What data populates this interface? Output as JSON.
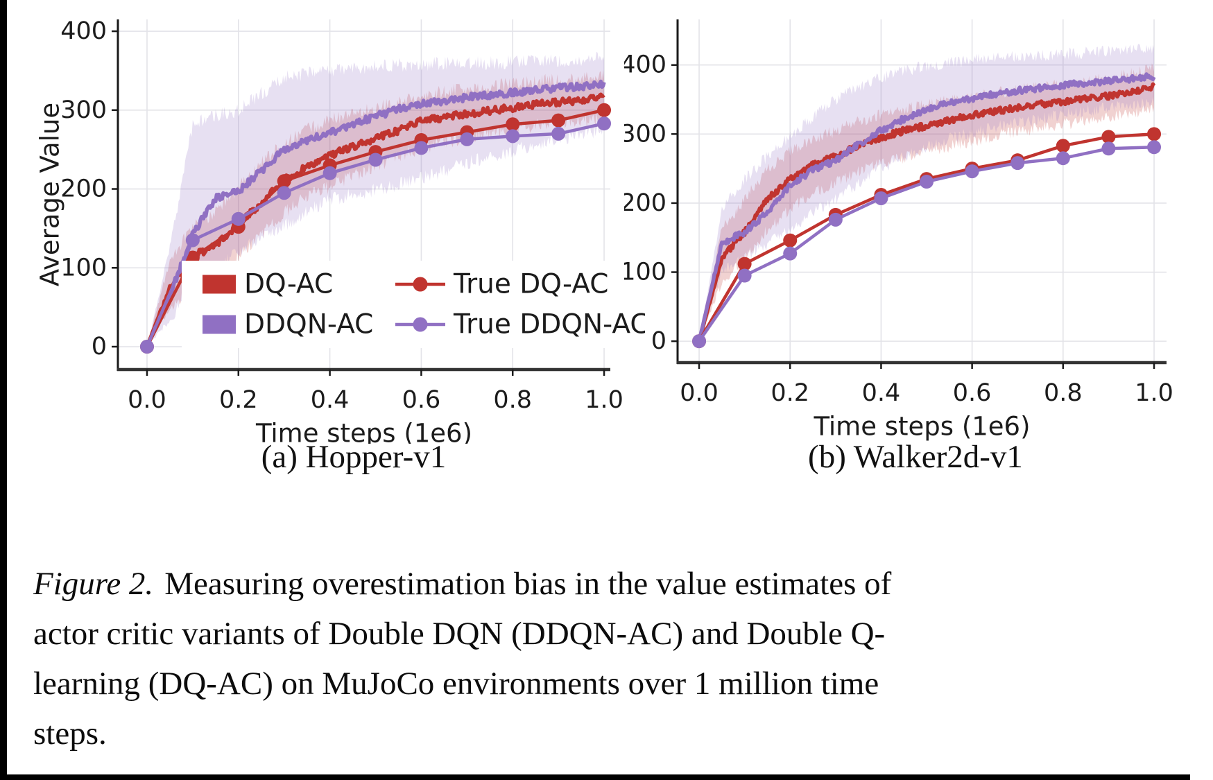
{
  "page": {
    "background": "#ffffff",
    "edge_bar_color": "#000000"
  },
  "colors": {
    "red": "#c0342f",
    "purple": "#9070c3",
    "grid": "#e3e3e8",
    "spine": "#222222",
    "text": "#1b1b1b",
    "legend_bg": "#ffffff"
  },
  "caption": {
    "label": "Figure 2.",
    "lines": [
      "Measuring overestimation bias in the value estimates of",
      "actor critic variants of Double DQN (DDQN-AC) and Double Q-",
      "learning (DQ-AC) on MuJoCo environments over 1 million time",
      "steps."
    ]
  },
  "chart_data": [
    {
      "id": "hopper",
      "type": "line",
      "title": "(a) Hopper-v1",
      "xlabel": "Time steps (1e6)",
      "ylabel": "Average Value",
      "xlim": [
        -0.0637,
        1.0136
      ],
      "ylim": [
        -29,
        415
      ],
      "xticks": [
        0,
        0.2,
        0.4,
        0.6,
        0.8,
        1.0
      ],
      "xtick_labels": [
        "0.0",
        "0.2",
        "0.4",
        "0.6",
        "0.8",
        "1.0"
      ],
      "yticks": [
        0,
        100,
        200,
        300,
        400
      ],
      "ytick_labels": [
        "0",
        "100",
        "200",
        "300",
        "400"
      ],
      "grid": true,
      "legend": true,
      "legend_position": "lower left inside",
      "series": [
        {
          "name": "DQ-AC",
          "color": "#c0342f",
          "style": "noisy_band",
          "x": [
            0,
            0.05,
            0.1,
            0.15,
            0.2,
            0.25,
            0.3,
            0.35,
            0.4,
            0.45,
            0.5,
            0.55,
            0.6,
            0.65,
            0.7,
            0.75,
            0.8,
            0.85,
            0.9,
            0.95,
            1.0
          ],
          "mean": [
            0,
            75,
            115,
            128,
            155,
            182,
            212,
            228,
            243,
            254,
            264,
            274,
            286,
            291,
            295,
            299,
            303,
            307,
            310,
            312,
            316
          ],
          "upper": [
            0,
            110,
            152,
            172,
            202,
            232,
            258,
            275,
            288,
            296,
            302,
            310,
            318,
            323,
            327,
            330,
            333,
            336,
            338,
            340,
            343
          ],
          "lower": [
            0,
            45,
            80,
            94,
            114,
            142,
            170,
            190,
            203,
            216,
            229,
            241,
            251,
            259,
            265,
            270,
            275,
            280,
            284,
            287,
            291
          ]
        },
        {
          "name": "DDQN-AC",
          "color": "#9070c3",
          "style": "noisy_band",
          "x": [
            0,
            0.05,
            0.1,
            0.15,
            0.2,
            0.25,
            0.3,
            0.35,
            0.4,
            0.45,
            0.5,
            0.55,
            0.6,
            0.65,
            0.7,
            0.75,
            0.8,
            0.85,
            0.9,
            0.95,
            1.0
          ],
          "mean": [
            0,
            65,
            143,
            188,
            197,
            223,
            250,
            262,
            271,
            282,
            292,
            301,
            308,
            312,
            316,
            319,
            322,
            325,
            328,
            330,
            333
          ],
          "upper": [
            0,
            125,
            282,
            293,
            299,
            321,
            341,
            346,
            350,
            353,
            355,
            357,
            358,
            359,
            360,
            360,
            361,
            362,
            363,
            364,
            366
          ],
          "lower": [
            0,
            35,
            72,
            96,
            121,
            139,
            153,
            171,
            186,
            193,
            199,
            206,
            213,
            223,
            233,
            241,
            249,
            256,
            263,
            269,
            276
          ]
        },
        {
          "name": "True DQ-AC",
          "color": "#c0342f",
          "style": "line_marker",
          "x": [
            0,
            0.1,
            0.2,
            0.3,
            0.4,
            0.5,
            0.6,
            0.7,
            0.8,
            0.9,
            1.0
          ],
          "y": [
            0,
            113,
            152,
            210,
            230,
            247,
            262,
            272,
            282,
            287,
            300
          ]
        },
        {
          "name": "True DDQN-AC",
          "color": "#9070c3",
          "style": "line_marker",
          "x": [
            0,
            0.1,
            0.2,
            0.3,
            0.4,
            0.5,
            0.6,
            0.7,
            0.8,
            0.9,
            1.0
          ],
          "y": [
            0,
            135,
            162,
            195,
            220,
            237,
            252,
            263,
            267,
            270,
            283
          ]
        }
      ]
    },
    {
      "id": "walker",
      "type": "line",
      "title": "(b) Walker2d-v1",
      "xlabel": "Time steps (1e6)",
      "ylabel": "",
      "xlim": [
        -0.0473,
        1.0274
      ],
      "ylim": [
        -31,
        466
      ],
      "xticks": [
        0,
        0.2,
        0.4,
        0.6,
        0.8,
        1.0
      ],
      "xtick_labels": [
        "0.0",
        "0.2",
        "0.4",
        "0.6",
        "0.8",
        "1.0"
      ],
      "yticks": [
        0,
        100,
        200,
        300,
        400
      ],
      "ytick_labels": [
        "0",
        "100",
        "200",
        "300",
        "400"
      ],
      "grid": true,
      "legend": false,
      "series": [
        {
          "name": "DQ-AC",
          "color": "#c0342f",
          "style": "noisy_band",
          "x": [
            0,
            0.05,
            0.1,
            0.15,
            0.2,
            0.25,
            0.3,
            0.35,
            0.4,
            0.45,
            0.5,
            0.55,
            0.6,
            0.65,
            0.7,
            0.75,
            0.8,
            0.85,
            0.9,
            0.95,
            1.0
          ],
          "mean": [
            0,
            120,
            158,
            205,
            235,
            255,
            268,
            283,
            295,
            305,
            312,
            320,
            327,
            333,
            338,
            343,
            347,
            351,
            355,
            360,
            368
          ],
          "upper": [
            0,
            165,
            205,
            250,
            275,
            292,
            305,
            318,
            328,
            336,
            342,
            348,
            354,
            359,
            364,
            368,
            372,
            376,
            381,
            387,
            395
          ],
          "lower": [
            0,
            85,
            118,
            162,
            192,
            214,
            230,
            245,
            257,
            266,
            274,
            282,
            290,
            297,
            303,
            309,
            314,
            319,
            324,
            330,
            338
          ]
        },
        {
          "name": "DDQN-AC",
          "color": "#9070c3",
          "style": "noisy_band",
          "x": [
            0,
            0.05,
            0.1,
            0.15,
            0.2,
            0.25,
            0.3,
            0.35,
            0.4,
            0.45,
            0.5,
            0.55,
            0.6,
            0.65,
            0.7,
            0.75,
            0.8,
            0.85,
            0.9,
            0.95,
            1.0
          ],
          "mean": [
            0,
            142,
            158,
            186,
            225,
            248,
            262,
            285,
            305,
            322,
            335,
            345,
            352,
            358,
            363,
            367,
            371,
            374,
            377,
            380,
            384
          ],
          "upper": [
            0,
            190,
            235,
            268,
            296,
            325,
            350,
            368,
            382,
            392,
            398,
            403,
            407,
            410,
            412,
            414,
            416,
            418,
            420,
            422,
            426
          ],
          "lower": [
            0,
            100,
            122,
            140,
            163,
            186,
            206,
            228,
            250,
            268,
            282,
            293,
            302,
            310,
            317,
            323,
            329,
            334,
            338,
            342,
            347
          ]
        },
        {
          "name": "True DQ-AC",
          "color": "#c0342f",
          "style": "line_marker",
          "x": [
            0,
            0.1,
            0.2,
            0.3,
            0.4,
            0.5,
            0.6,
            0.7,
            0.8,
            0.9,
            1.0
          ],
          "y": [
            0,
            112,
            146,
            183,
            212,
            235,
            250,
            262,
            283,
            296,
            300
          ]
        },
        {
          "name": "True DDQN-AC",
          "color": "#9070c3",
          "style": "line_marker",
          "x": [
            0,
            0.1,
            0.2,
            0.3,
            0.4,
            0.5,
            0.6,
            0.7,
            0.8,
            0.9,
            1.0
          ],
          "y": [
            0,
            95,
            127,
            176,
            207,
            231,
            246,
            258,
            265,
            279,
            281
          ]
        }
      ]
    }
  ]
}
